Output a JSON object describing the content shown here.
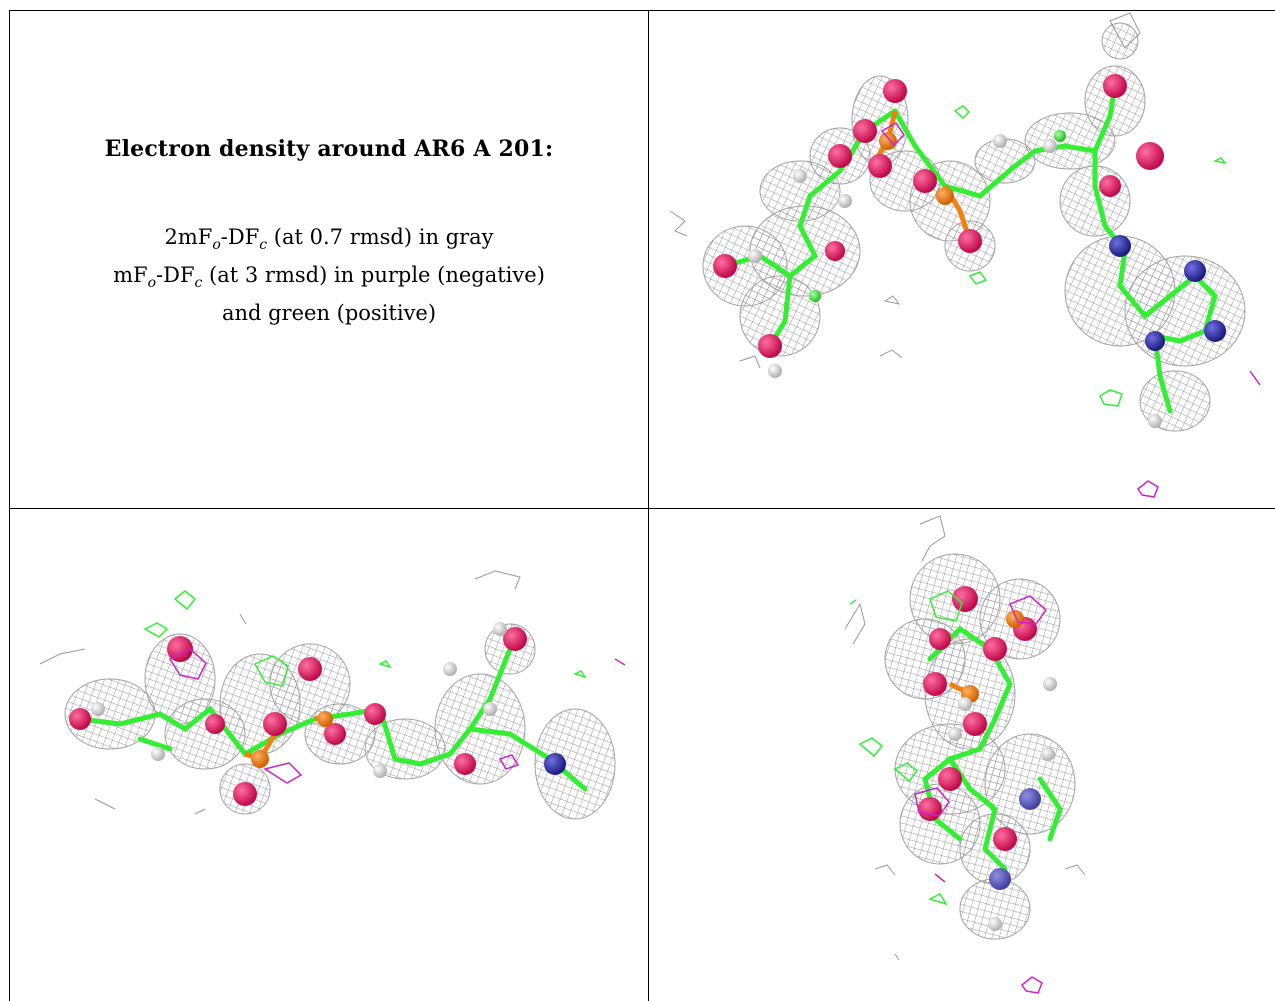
{
  "caption": {
    "title": "Electron density around AR6 A 201:",
    "line1_pre": "2mF",
    "line1_sub_o": "o",
    "line1_mid": "-DF",
    "line1_sub_c": "c",
    "line1_post": " (at 0.7 rmsd) in gray",
    "line2_pre": "mF",
    "line2_sub_o": "o",
    "line2_mid": "-DF",
    "line2_sub_c": "c",
    "line2_post": " (at 3 rmsd) in purple (negative)",
    "line3": "and green (positive)"
  },
  "colors": {
    "mesh_gray": "#8f8f8f",
    "mesh_green": "#33ee33",
    "mesh_purple": "#cc22cc",
    "carbon": "#33ee33",
    "oxygen": "#e0105a",
    "nitrogen": "#2a2aa8",
    "phosphorus": "#f08010",
    "hydrogen": "#e8e8e8"
  }
}
